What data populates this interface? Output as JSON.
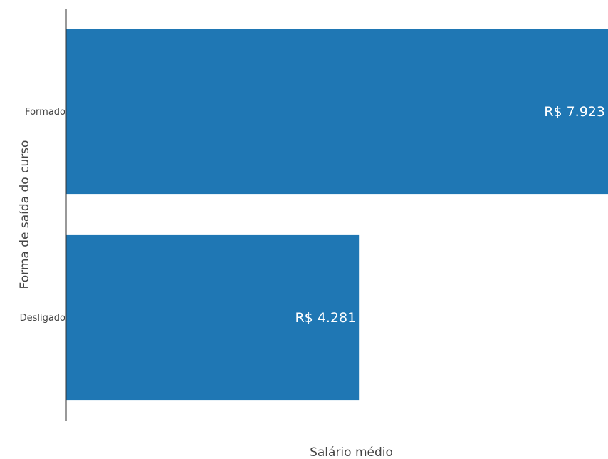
{
  "chart_data": {
    "type": "bar",
    "orientation": "horizontal",
    "categories": [
      "Formado",
      "Desligado"
    ],
    "values": [
      7923,
      4281
    ],
    "value_labels": [
      "R$ 7.923",
      "R$ 4.281"
    ],
    "xlabel": "Salário médio",
    "ylabel": "Forma de saída do curso",
    "xlim": [
      0,
      7923
    ],
    "grid": false,
    "legend": "none",
    "bar_color": "#1f77b4"
  }
}
